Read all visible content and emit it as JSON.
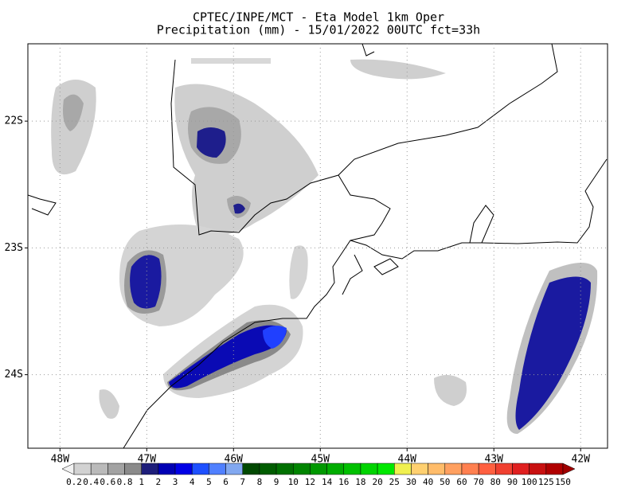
{
  "map": {
    "title": "CPTEC/INPE/MCT -  Eta Model 1km Oper",
    "subtitle": "Precipitation (mm) - 15/01/2022 00UTC fct=33h",
    "xlim": [
      -48.37,
      -41.69
    ],
    "ylim": [
      -24.58,
      -21.39
    ],
    "xticks": [
      {
        "value": -48,
        "label": "48W"
      },
      {
        "value": -47,
        "label": "47W"
      },
      {
        "value": -46,
        "label": "46W"
      },
      {
        "value": -45,
        "label": "45W"
      },
      {
        "value": -44,
        "label": "44W"
      },
      {
        "value": -43,
        "label": "43W"
      },
      {
        "value": -42,
        "label": "42W"
      }
    ],
    "yticks": [
      {
        "value": -22,
        "label": "22S"
      },
      {
        "value": -23,
        "label": "23S"
      },
      {
        "value": -24,
        "label": "24S"
      }
    ],
    "grid": true,
    "colorbar": {
      "levels": [
        0.2,
        0.4,
        0.6,
        0.8,
        1,
        2,
        3,
        4,
        5,
        6,
        7,
        8,
        9,
        10,
        12,
        14,
        16,
        18,
        20,
        25,
        30,
        40,
        50,
        60,
        70,
        80,
        90,
        100,
        125,
        150
      ],
      "colors": [
        "#f2f2f2",
        "#d2d2d2",
        "#bababa",
        "#a2a2a2",
        "#8a8a8a",
        "#1e1e7a",
        "#0000b4",
        "#0000e6",
        "#1e50ff",
        "#5080ff",
        "#82a8f0",
        "#004800",
        "#005c00",
        "#007000",
        "#008400",
        "#009800",
        "#00ac00",
        "#00c000",
        "#00d400",
        "#00e800",
        "#f0f050",
        "#ffd070",
        "#ffbc6a",
        "#ffa060",
        "#ff8050",
        "#ff6040",
        "#f04030",
        "#e02020",
        "#c81010",
        "#b00000",
        "#a00000"
      ]
    }
  }
}
